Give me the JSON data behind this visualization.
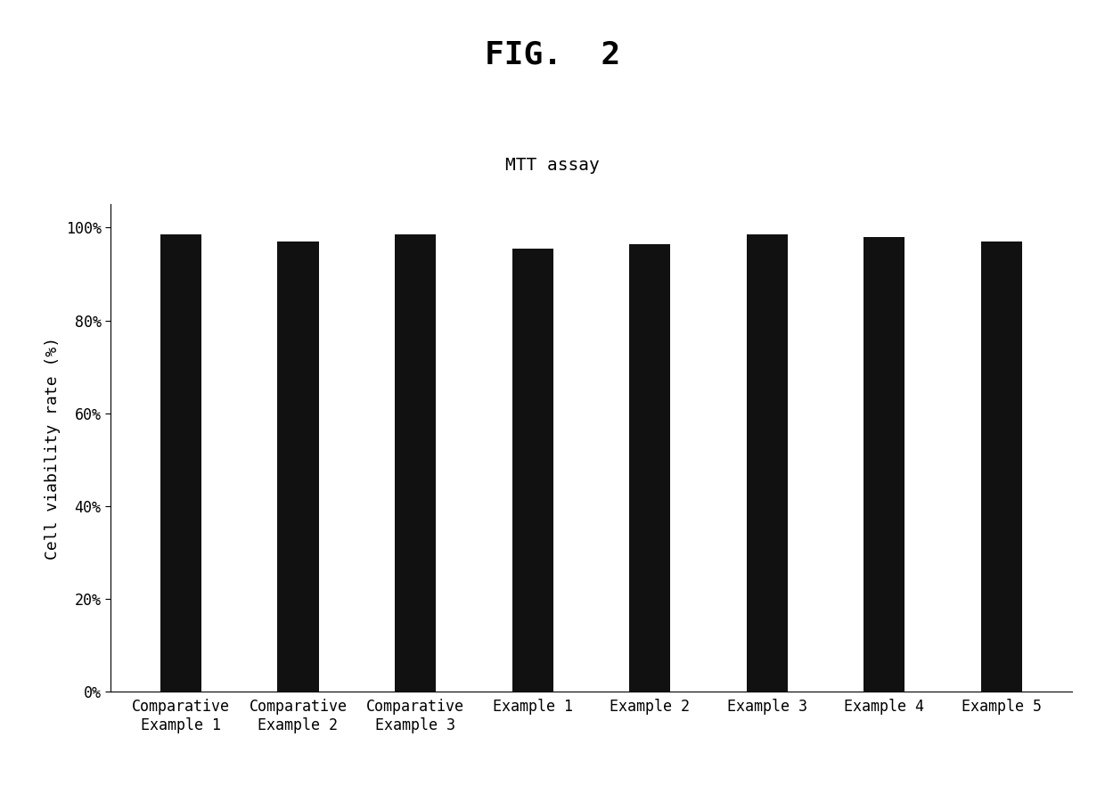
{
  "title": "FIG.  2",
  "subtitle": "MTT assay",
  "categories": [
    "Comparative\nExample 1",
    "Comparative\nExample 2",
    "Comparative\nExample 3",
    "Example 1",
    "Example 2",
    "Example 3",
    "Example 4",
    "Example 5"
  ],
  "values": [
    0.985,
    0.97,
    0.985,
    0.955,
    0.965,
    0.985,
    0.98,
    0.97
  ],
  "bar_color": "#111111",
  "ylabel": "Cell viability rate (%)",
  "ylim": [
    0,
    1.05
  ],
  "yticks": [
    0.0,
    0.2,
    0.4,
    0.6,
    0.8,
    1.0
  ],
  "ytick_labels": [
    "0%",
    "20%",
    "40%",
    "60%",
    "80%",
    "100%"
  ],
  "background_color": "#ffffff",
  "title_fontsize": 26,
  "subtitle_fontsize": 14,
  "ylabel_fontsize": 13,
  "tick_fontsize": 12,
  "bar_width": 0.35
}
